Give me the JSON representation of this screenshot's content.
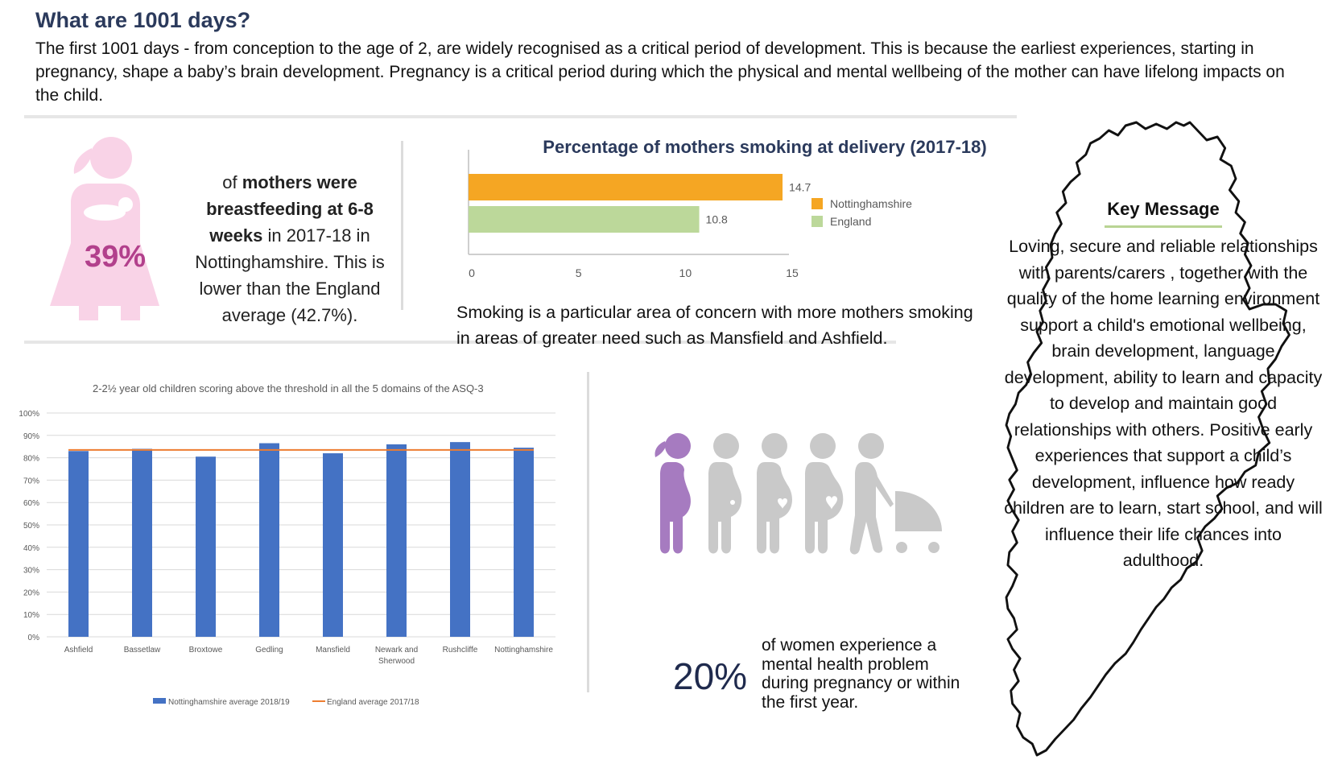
{
  "header": {
    "title": "What are 1001 days?",
    "intro": "The first 1001 days - from conception to the age of 2, are widely recognised as a critical period of development. This is because the earliest experiences, starting in pregnancy, shape a baby’s brain development. Pregnancy is a critical period during which the physical and mental wellbeing of the mother can have lifelong impacts on the child."
  },
  "breastfeeding": {
    "percent": "39%",
    "text_1": "of ",
    "text_bold": "mothers were breastfeeding at 6-8 weeks",
    "text_2": " in 2017-18 in Nottinghamshire. This is lower than the England average (42.7%).",
    "colors": {
      "figure": "#f9d3e7",
      "percent": "#b2408c"
    },
    "icon": "breastfeeding-mother-icon"
  },
  "smoking": {
    "description": "Smoking is a particular area of concern with more mothers smoking in areas of greater need such as Mansfield and Ashfield."
  },
  "mental_health": {
    "percent": "20%",
    "text": "of women experience a mental health problem during pregnancy or within the first year.",
    "icons": "pregnancy-progression-icons",
    "colors": {
      "highlight": "#a67bc0",
      "grey": "#c9c9c9"
    }
  },
  "key_message": {
    "title": "Key Message",
    "text": "Loving, secure and reliable relationships with parents/carers , together with the quality of the home learning environment support a child's emotional wellbeing, brain development, language development, ability to learn and capacity to develop and maintain good relationships with others. Positive early experiences that support a child’s development, influence how ready children are to learn, start school, and will influence their life chances into adulthood.",
    "map_outline": "nottinghamshire-map-outline",
    "underline_color": "#b9d494"
  },
  "chart_data": [
    {
      "type": "bar",
      "title": "Percentage of mothers smoking at delivery (2017-18)",
      "orientation": "horizontal",
      "series": [
        {
          "name": "Nottinghamshire",
          "value": 14.7,
          "color": "#f5a623"
        },
        {
          "name": "England",
          "value": 10.8,
          "color": "#bcd89a"
        }
      ],
      "data_labels": [
        "14.7",
        "10.8"
      ],
      "x_ticks": [
        "0",
        "5",
        "10",
        "15"
      ],
      "xlim": [
        0,
        15
      ],
      "legend": "right",
      "grid": false
    },
    {
      "type": "bar",
      "title": "2-2½ year old children scoring above the threshold in all the 5 domains of the ASQ-3",
      "categories": [
        "Ashfield",
        "Bassetlaw",
        "Broxtowe",
        "Gedling",
        "Mansfield",
        "Newark and Sherwood",
        "Rushcliffe",
        "Nottinghamshire"
      ],
      "series": [
        {
          "name": "Nottinghamshire average 2018/19",
          "type": "bar",
          "values": [
            83,
            84,
            80.5,
            86.5,
            82,
            86,
            87,
            84.5
          ],
          "color": "#4472c4"
        },
        {
          "name": "England average 2017/18",
          "type": "line",
          "values": [
            83.5,
            83.5,
            83.5,
            83.5,
            83.5,
            83.5,
            83.5,
            83.5
          ],
          "color": "#ed7d31"
        }
      ],
      "y_ticks": [
        "0%",
        "10%",
        "20%",
        "30%",
        "40%",
        "50%",
        "60%",
        "70%",
        "80%",
        "90%",
        "100%"
      ],
      "ylim": [
        0,
        100
      ],
      "grid": true,
      "legend": "bottom"
    }
  ]
}
